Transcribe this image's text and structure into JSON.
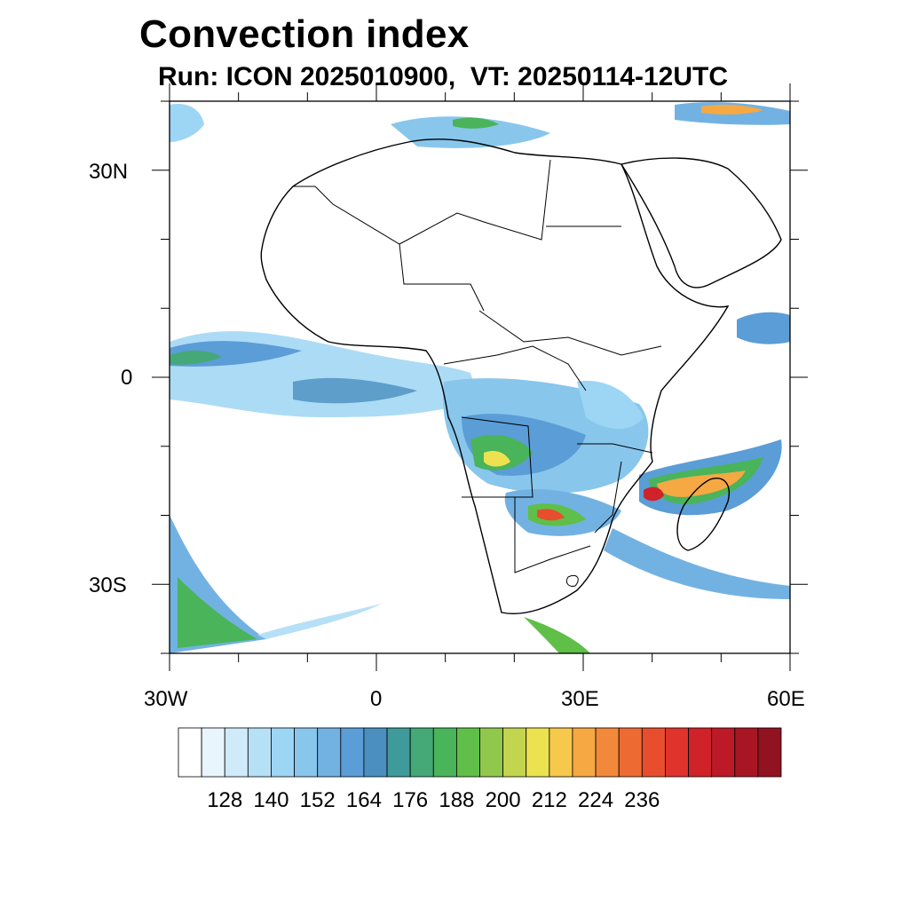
{
  "title": "Convection index",
  "subtitle": "Run: ICON 2025010900,  VT: 20250114-12UTC",
  "map": {
    "lon_range": [
      -30,
      60
    ],
    "lat_range": [
      -40,
      40
    ],
    "lat_tick_labels": [
      "30N",
      "0",
      "30S"
    ],
    "lon_tick_labels": [
      "30W",
      "0",
      "30E",
      "60E"
    ]
  },
  "colorbar": {
    "colors": [
      "#ffffff",
      "#e8f5fc",
      "#cfeaf8",
      "#b6e0f6",
      "#9dd5f4",
      "#88c6ec",
      "#72b2e2",
      "#5b9dd6",
      "#4a8fbf",
      "#3f9a9a",
      "#44a877",
      "#49b45a",
      "#5fbf48",
      "#90c84c",
      "#c3d44e",
      "#ece24f",
      "#f6c84c",
      "#f6a843",
      "#f2893a",
      "#ed6a32",
      "#e84e2e",
      "#e0332b",
      "#cf2229",
      "#bc1a27",
      "#a81624",
      "#921320"
    ],
    "tick_labels": [
      "128",
      "140",
      "152",
      "164",
      "176",
      "188",
      "200",
      "212",
      "224",
      "236"
    ],
    "levels": [
      128,
      140,
      152,
      164,
      176,
      188,
      200,
      212,
      224,
      236
    ]
  }
}
